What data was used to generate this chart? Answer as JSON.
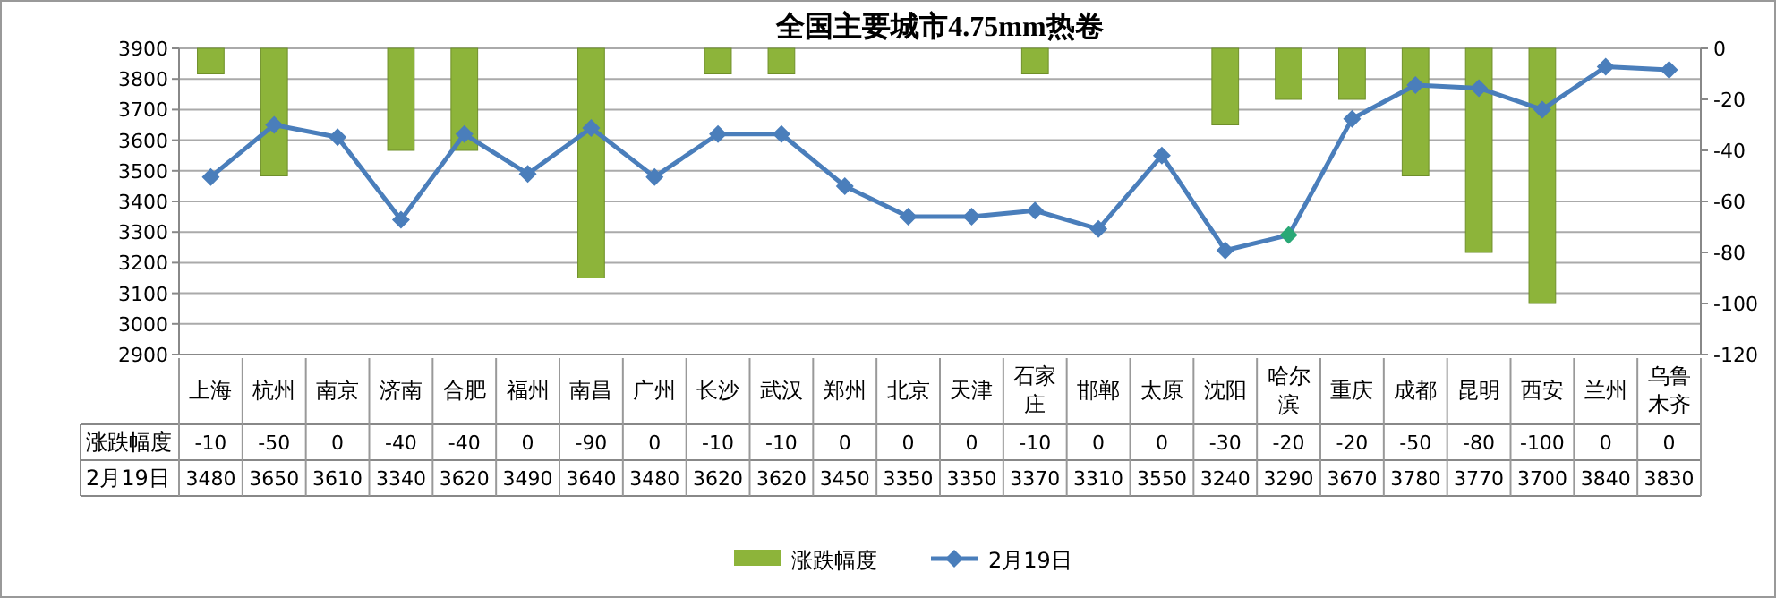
{
  "chart_data": {
    "type": "bar",
    "title": "全国主要城市4.75mm热卷",
    "categories": [
      "上海",
      "杭州",
      "南京",
      "济南",
      "合肥",
      "福州",
      "南昌",
      "广州",
      "长沙",
      "武汉",
      "郑州",
      "北京",
      "天津",
      "石家庄",
      "邯郸",
      "太原",
      "沈阳",
      "哈尔滨",
      "重庆",
      "成都",
      "昆明",
      "西安",
      "兰州",
      "乌鲁木齐"
    ],
    "series": [
      {
        "name": "涨跌幅度",
        "axis": "y2",
        "color": "#8db43a",
        "values": [
          -10,
          -50,
          0,
          -40,
          -40,
          0,
          -90,
          0,
          -10,
          -10,
          0,
          0,
          0,
          -10,
          0,
          0,
          -30,
          -20,
          -20,
          -50,
          -80,
          -100,
          0,
          0
        ]
      },
      {
        "name": "2月19日",
        "type": "line",
        "axis": "y",
        "color": "#4a7ebb",
        "colors": [
          "#4a7ebb",
          "#4a7ebb",
          "#4a7ebb",
          "#4a7ebb",
          "#4a7ebb",
          "#4a7ebb",
          "#4a7ebb",
          "#4a7ebb",
          "#4a7ebb",
          "#4a7ebb",
          "#4a7ebb",
          "#4a7ebb",
          "#4a7ebb",
          "#4a7ebb",
          "#4a7ebb",
          "#4a7ebb",
          "#4a7ebb",
          "#2aa876",
          "#4a7ebb",
          "#4a7ebb",
          "#4a7ebb",
          "#4a7ebb",
          "#4a7ebb",
          "#4a7ebb"
        ],
        "values": [
          3480,
          3650,
          3610,
          3340,
          3620,
          3490,
          3640,
          3480,
          3620,
          3620,
          3450,
          3350,
          3350,
          3370,
          3310,
          3550,
          3240,
          3290,
          3670,
          3780,
          3770,
          3700,
          3840,
          3830
        ]
      }
    ],
    "ylim": [
      2900,
      3900
    ],
    "yticks": [
      2900,
      3000,
      3100,
      3200,
      3300,
      3400,
      3500,
      3600,
      3700,
      3800,
      3900
    ],
    "y2lim": [
      -120,
      0
    ],
    "y2ticks": [
      -120,
      -100,
      -80,
      -60,
      -40,
      -20,
      0
    ],
    "grid": "y",
    "legend": "bottom",
    "data_labels": true,
    "marker": "diamond"
  }
}
